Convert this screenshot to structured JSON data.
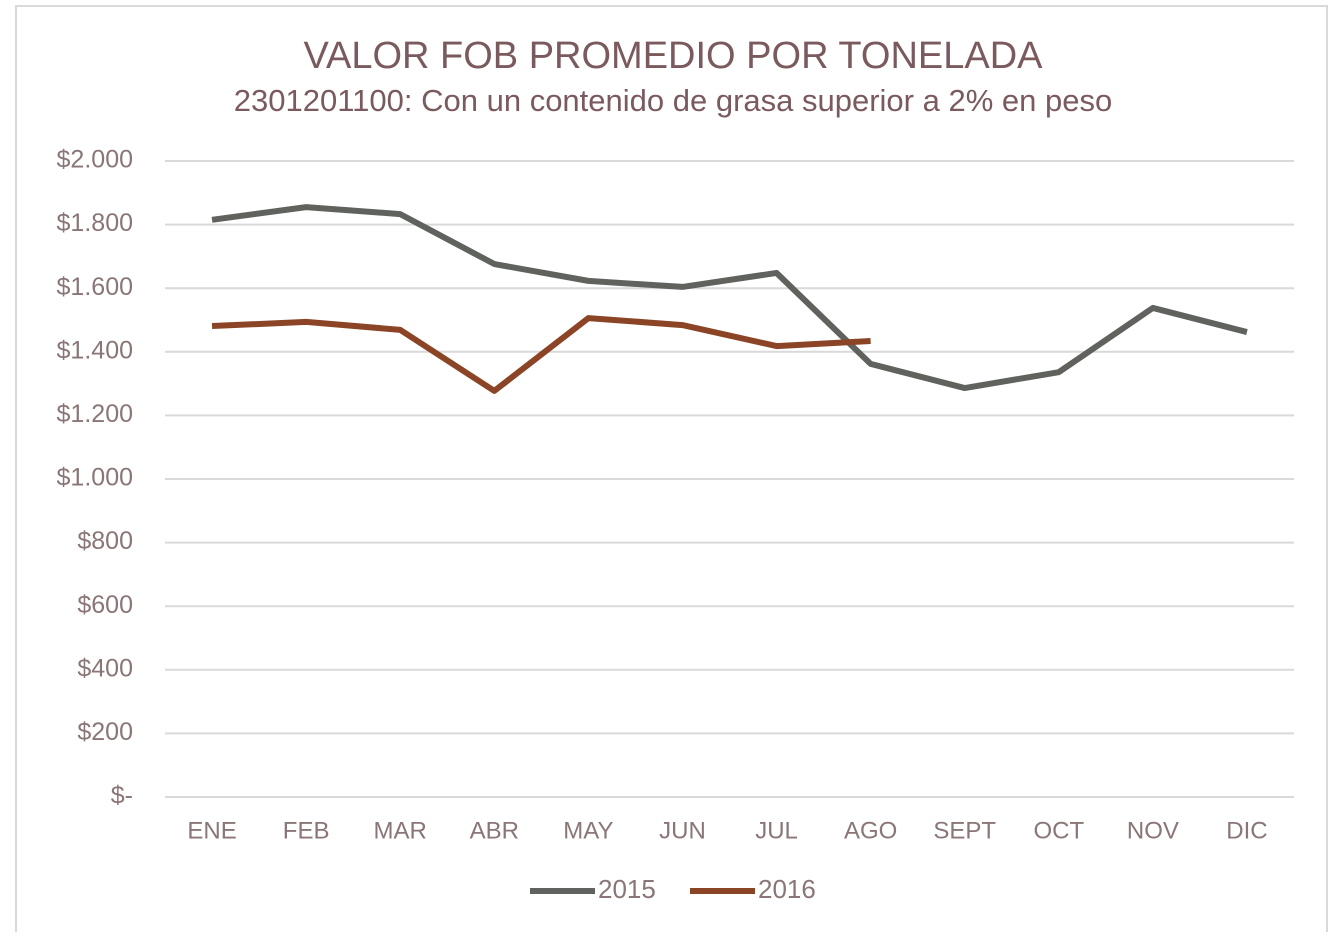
{
  "chart_data": {
    "type": "line",
    "title": "VALOR FOB PROMEDIO POR TONELADA",
    "subtitle": "2301201100: Con un contenido de grasa superior a 2% en peso",
    "categories": [
      "ENE",
      "FEB",
      "MAR",
      "ABR",
      "MAY",
      "JUN",
      "JUL",
      "AGO",
      "SEPT",
      "OCT",
      "NOV",
      "DIC"
    ],
    "series": [
      {
        "name": "2015",
        "color": "#5f625d",
        "values": [
          1815,
          1855,
          1833,
          1676,
          1623,
          1604,
          1648,
          1362,
          1286,
          1336,
          1538,
          1462
        ]
      },
      {
        "name": "2016",
        "color": "#8b4526",
        "values": [
          1481,
          1494,
          1469,
          1277,
          1506,
          1484,
          1418,
          1434,
          null,
          null,
          null,
          null
        ]
      }
    ],
    "ylim": [
      0,
      2000
    ],
    "yticks": [
      {
        "value": 0,
        "label": "$-"
      },
      {
        "value": 200,
        "label": "$200"
      },
      {
        "value": 400,
        "label": "$400"
      },
      {
        "value": 600,
        "label": "$600"
      },
      {
        "value": 800,
        "label": "$800"
      },
      {
        "value": 1000,
        "label": "$1.000"
      },
      {
        "value": 1200,
        "label": "$1.200"
      },
      {
        "value": 1400,
        "label": "$1.400"
      },
      {
        "value": 1600,
        "label": "$1.600"
      },
      {
        "value": 1800,
        "label": "$1.800"
      },
      {
        "value": 2000,
        "label": "$2.000"
      }
    ],
    "grid": true,
    "legend": "bottom"
  }
}
